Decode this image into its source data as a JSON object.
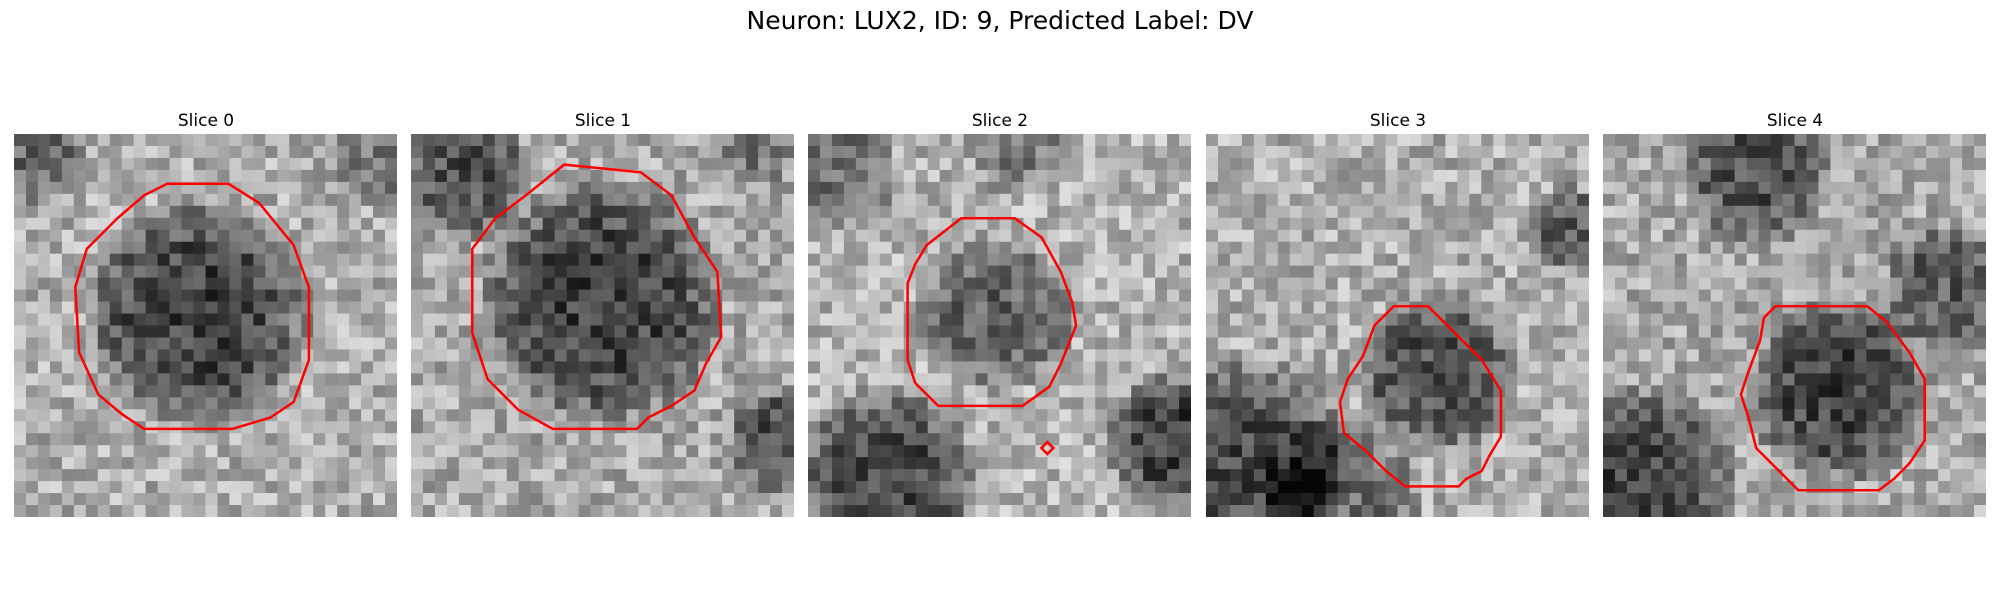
{
  "figure": {
    "title": "Neuron: LUX2, ID: 9, Predicted Label: DV",
    "contour_color": "#ff0000"
  },
  "panels": [
    {
      "title": "Slice 0"
    },
    {
      "title": "Slice 1"
    },
    {
      "title": "Slice 2"
    },
    {
      "title": "Slice 3"
    },
    {
      "title": "Slice 4"
    }
  ]
}
